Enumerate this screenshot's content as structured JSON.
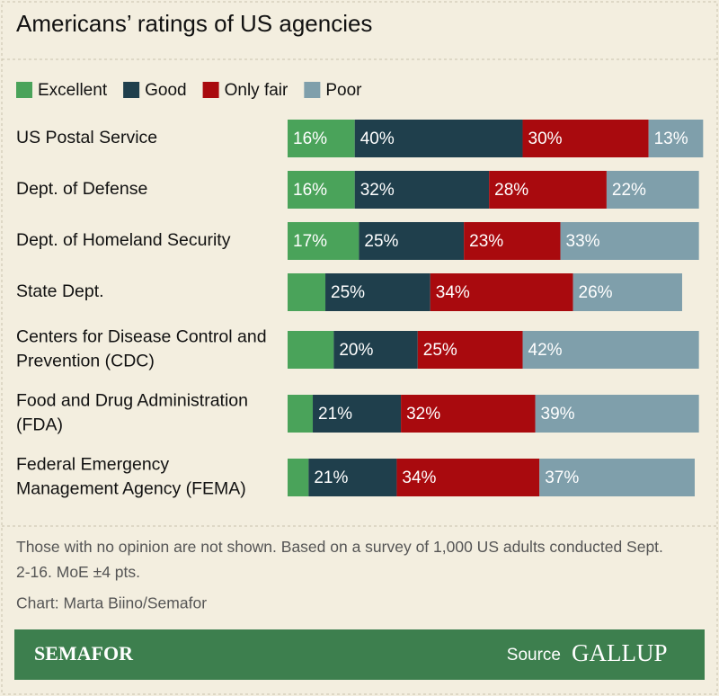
{
  "chart_data": {
    "type": "stacked-barh",
    "title": "Americans’ ratings of US agencies",
    "categories": [
      "US Postal Service",
      "Dept. of Defense",
      "Dept. of Homeland Security",
      "State Dept.",
      "Centers for Disease Control and Prevention (CDC)",
      "Food and Drug Administration (FDA)",
      "Federal Emergency Management Agency (FEMA)"
    ],
    "series": [
      {
        "name": "Excellent",
        "color": "#4aa35a",
        "values": [
          16,
          16,
          17,
          9,
          11,
          6,
          5
        ],
        "value_labels": [
          "16%",
          "16%",
          "17%",
          null,
          null,
          null,
          null
        ]
      },
      {
        "name": "Good",
        "color": "#1f3f4c",
        "values": [
          40,
          32,
          25,
          25,
          20,
          21,
          21
        ],
        "value_labels": [
          "40%",
          "32%",
          "25%",
          "25%",
          "20%",
          "21%",
          "21%"
        ]
      },
      {
        "name": "Only fair",
        "color": "#a90a0e",
        "values": [
          30,
          28,
          23,
          34,
          25,
          32,
          34
        ],
        "value_labels": [
          "30%",
          "28%",
          "23%",
          "34%",
          "25%",
          "32%",
          "34%"
        ]
      },
      {
        "name": "Poor",
        "color": "#7f9fab",
        "values": [
          13,
          22,
          33,
          26,
          42,
          39,
          37
        ],
        "value_labels": [
          "13%",
          "22%",
          "33%",
          "26%",
          "42%",
          "39%",
          "37%"
        ]
      }
    ],
    "xlim": [
      0,
      100
    ],
    "note": "Those with no opinion are not shown. Based on a survey of 1,000 US adults conducted Sept. 2-16. MoE ±4 pts.",
    "credit": "Chart: Marta Biino/Semafor",
    "footer": {
      "brand": "SEMAFOR",
      "source_label": "Source",
      "source": "GALLUP"
    }
  }
}
